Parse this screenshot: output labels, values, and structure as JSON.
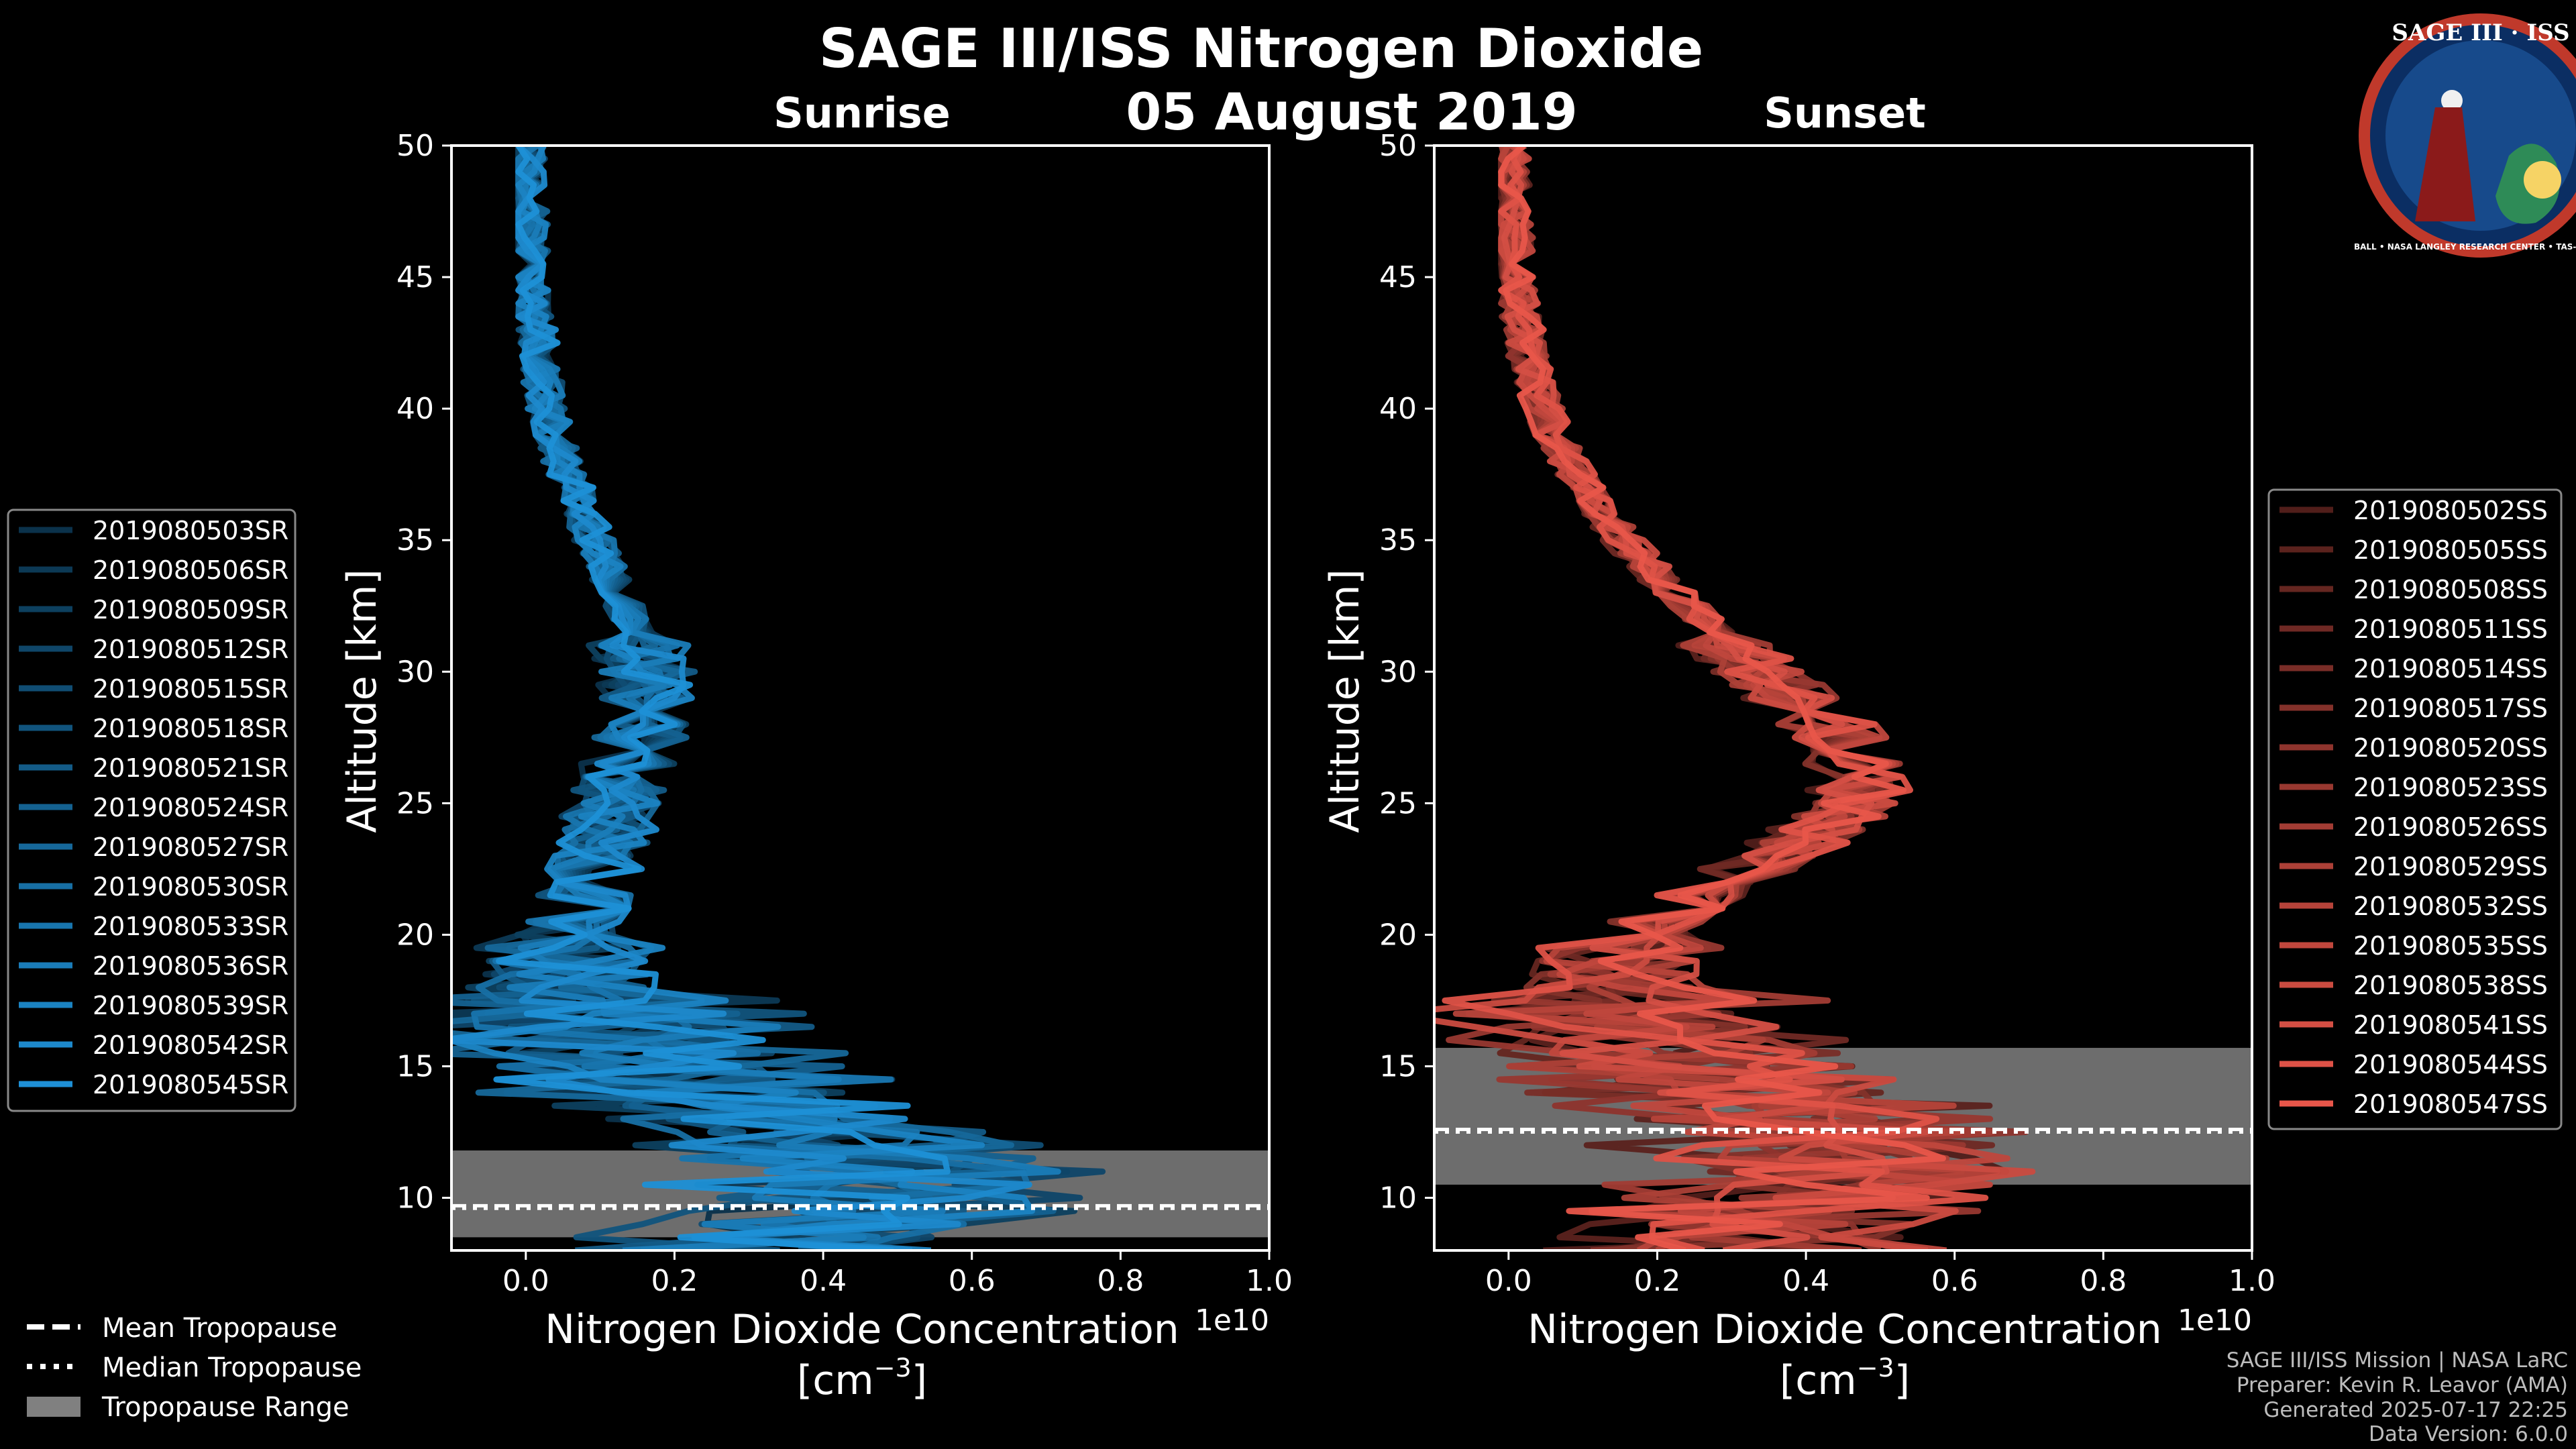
{
  "figure": {
    "title": "SAGE III/ISS Nitrogen Dioxide",
    "date": "05 August 2019",
    "logo": {
      "text_top": "SAGE III · ISS",
      "text_ring": "BALL • NASA LANGLEY RESEARCH CENTER • TAS-I • ESA"
    },
    "credits": [
      "SAGE III/ISS Mission | NASA LaRC",
      "Preparer: Kevin R. Leavor (AMA)",
      "Generated 2025-07-17 22:25",
      "Data Version: 6.0.0"
    ],
    "common_legend": {
      "mean": "Mean Tropopause",
      "median": "Median Tropopause",
      "range": "Tropopause Range"
    }
  },
  "chart_data": [
    {
      "type": "line",
      "panel": "sunrise",
      "title": "Sunrise",
      "xlabel": "Nitrogen Dioxide Concentration",
      "xunit": "[cm",
      "xunit_exp": "−3",
      "xunit_close": "]",
      "ylabel": "Altitude [km]",
      "offset_text": "1e10",
      "xlim": [
        -0.1,
        1.0
      ],
      "ylim": [
        8,
        50
      ],
      "xticks": [
        "0.0",
        "0.2",
        "0.4",
        "0.6",
        "0.8",
        "1.0"
      ],
      "yticks": [
        "10",
        "15",
        "20",
        "25",
        "30",
        "35",
        "40",
        "45",
        "50"
      ],
      "color": "#1e90d6",
      "tropopause": {
        "mean_km": 9.7,
        "median_km": 9.6,
        "range_km": [
          8.5,
          11.8
        ]
      },
      "profile_shape": [
        [
          8.5,
          0.3
        ],
        [
          10,
          0.45
        ],
        [
          12,
          0.35
        ],
        [
          14,
          0.18
        ],
        [
          16,
          0.06
        ],
        [
          18,
          0.04
        ],
        [
          20,
          0.05
        ],
        [
          22,
          0.08
        ],
        [
          24,
          0.1
        ],
        [
          26,
          0.12
        ],
        [
          28,
          0.15
        ],
        [
          30,
          0.15
        ],
        [
          32,
          0.13
        ],
        [
          34,
          0.1
        ],
        [
          36,
          0.07
        ],
        [
          38,
          0.045
        ],
        [
          40,
          0.025
        ],
        [
          44,
          0.008
        ],
        [
          48,
          0.002
        ],
        [
          50,
          0.0
        ]
      ],
      "series": [
        {
          "name": "2019080503SR"
        },
        {
          "name": "2019080506SR"
        },
        {
          "name": "2019080509SR"
        },
        {
          "name": "2019080512SR"
        },
        {
          "name": "2019080515SR"
        },
        {
          "name": "2019080518SR"
        },
        {
          "name": "2019080521SR"
        },
        {
          "name": "2019080524SR"
        },
        {
          "name": "2019080527SR"
        },
        {
          "name": "2019080530SR"
        },
        {
          "name": "2019080533SR"
        },
        {
          "name": "2019080536SR"
        },
        {
          "name": "2019080539SR"
        },
        {
          "name": "2019080542SR"
        },
        {
          "name": "2019080545SR"
        }
      ]
    },
    {
      "type": "line",
      "panel": "sunset",
      "title": "Sunset",
      "xlabel": "Nitrogen Dioxide Concentration",
      "xunit": "[cm",
      "xunit_exp": "−3",
      "xunit_close": "]",
      "ylabel": "Altitude [km]",
      "offset_text": "1e10",
      "xlim": [
        -0.1,
        1.0
      ],
      "ylim": [
        8,
        50
      ],
      "xticks": [
        "0.0",
        "0.2",
        "0.4",
        "0.6",
        "0.8",
        "1.0"
      ],
      "yticks": [
        "10",
        "15",
        "20",
        "25",
        "30",
        "35",
        "40",
        "45",
        "50"
      ],
      "color": "#e8564a",
      "tropopause": {
        "mean_km": 12.6,
        "median_km": 12.5,
        "range_km": [
          10.5,
          15.7
        ]
      },
      "profile_shape": [
        [
          9.5,
          0.3
        ],
        [
          11,
          0.4
        ],
        [
          13,
          0.35
        ],
        [
          15,
          0.2
        ],
        [
          17,
          0.12
        ],
        [
          19,
          0.13
        ],
        [
          21,
          0.2
        ],
        [
          23,
          0.33
        ],
        [
          25,
          0.43
        ],
        [
          27,
          0.42
        ],
        [
          29,
          0.35
        ],
        [
          31,
          0.27
        ],
        [
          33,
          0.2
        ],
        [
          35,
          0.14
        ],
        [
          37,
          0.09
        ],
        [
          39,
          0.055
        ],
        [
          41,
          0.03
        ],
        [
          44,
          0.012
        ],
        [
          47,
          0.004
        ],
        [
          50,
          0.0
        ]
      ],
      "series": [
        {
          "name": "2019080502SS"
        },
        {
          "name": "2019080505SS"
        },
        {
          "name": "2019080508SS"
        },
        {
          "name": "2019080511SS"
        },
        {
          "name": "2019080514SS"
        },
        {
          "name": "2019080517SS"
        },
        {
          "name": "2019080520SS"
        },
        {
          "name": "2019080523SS"
        },
        {
          "name": "2019080526SS"
        },
        {
          "name": "2019080529SS"
        },
        {
          "name": "2019080532SS"
        },
        {
          "name": "2019080535SS"
        },
        {
          "name": "2019080538SS"
        },
        {
          "name": "2019080541SS"
        },
        {
          "name": "2019080544SS"
        },
        {
          "name": "2019080547SS"
        }
      ]
    }
  ]
}
